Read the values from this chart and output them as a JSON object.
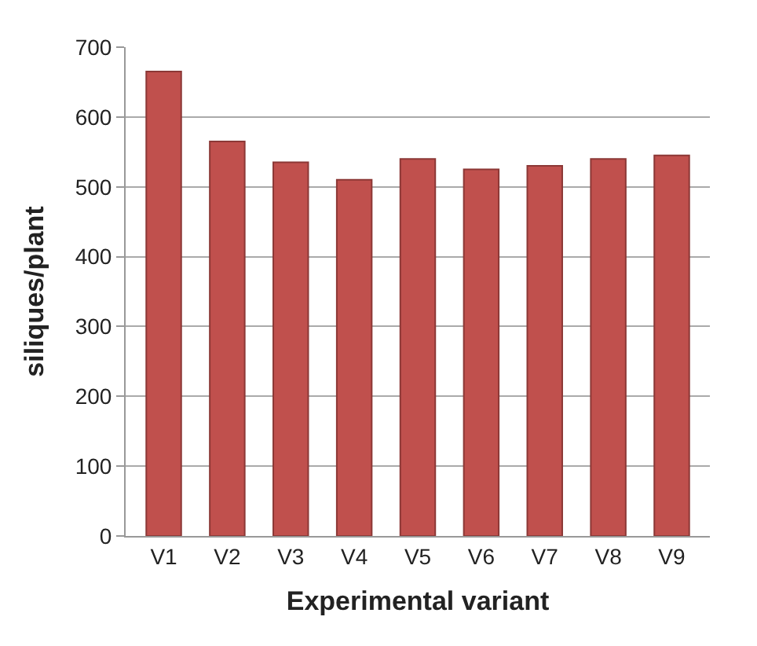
{
  "chart_data": {
    "type": "bar",
    "xlabel": "Experimental variant",
    "ylabel": "siliques/plant",
    "categories": [
      "V1",
      "V2",
      "V3",
      "V4",
      "V5",
      "V6",
      "V7",
      "V8",
      "V9"
    ],
    "values": [
      665,
      565,
      535,
      510,
      540,
      525,
      530,
      540,
      545
    ],
    "color": "#c0504d",
    "ylim": [
      0,
      700
    ],
    "yticks": [
      0,
      100,
      200,
      300,
      400,
      500,
      600,
      700
    ],
    "grid": "y"
  }
}
